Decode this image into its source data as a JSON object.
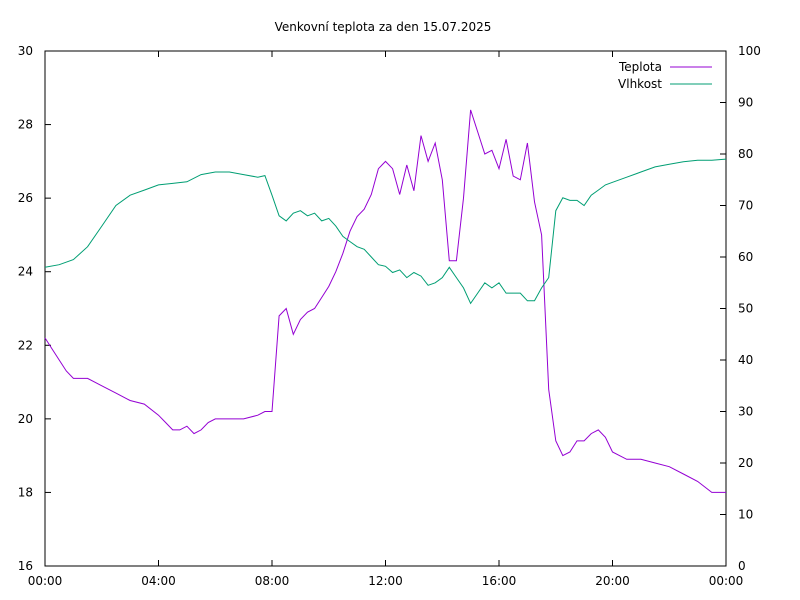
{
  "chart_data": {
    "type": "line",
    "title": "Venkovní teplota za den 15.07.2025",
    "xlabel": "",
    "ylabel": "",
    "y2label": "",
    "x_ticks": [
      "00:00",
      "04:00",
      "08:00",
      "12:00",
      "16:00",
      "20:00",
      "00:00"
    ],
    "x_range_hours": [
      0,
      24
    ],
    "y_left": {
      "range": [
        16,
        30
      ],
      "ticks": [
        16,
        18,
        20,
        22,
        24,
        26,
        28,
        30
      ]
    },
    "y_right": {
      "range": [
        0,
        100
      ],
      "ticks": [
        0,
        10,
        20,
        30,
        40,
        50,
        60,
        70,
        80,
        90,
        100
      ]
    },
    "grid": false,
    "legend_position": "top-right",
    "series": [
      {
        "name": "Teplota",
        "axis": "left",
        "color": "#9400d3",
        "x": [
          0,
          0.25,
          0.5,
          0.75,
          1,
          1.5,
          2,
          2.5,
          3,
          3.5,
          4,
          4.25,
          4.5,
          4.75,
          5,
          5.25,
          5.5,
          5.75,
          6,
          6.5,
          7,
          7.5,
          7.75,
          8,
          8.25,
          8.5,
          8.75,
          9,
          9.25,
          9.5,
          9.75,
          10,
          10.25,
          10.5,
          10.75,
          11,
          11.25,
          11.5,
          11.75,
          12,
          12.25,
          12.5,
          12.75,
          13,
          13.25,
          13.5,
          13.75,
          14,
          14.25,
          14.5,
          14.75,
          15,
          15.25,
          15.5,
          15.75,
          16,
          16.25,
          16.5,
          16.75,
          17,
          17.25,
          17.5,
          17.75,
          18,
          18.25,
          18.5,
          18.75,
          19,
          19.25,
          19.5,
          19.75,
          20,
          20.5,
          21,
          21.5,
          22,
          22.5,
          23,
          23.5,
          24
        ],
        "values": [
          22.2,
          21.9,
          21.6,
          21.3,
          21.1,
          21.1,
          20.9,
          20.7,
          20.5,
          20.4,
          20.1,
          19.9,
          19.7,
          19.7,
          19.8,
          19.6,
          19.7,
          19.9,
          20.0,
          20.0,
          20.0,
          20.1,
          20.2,
          20.2,
          22.8,
          23.0,
          22.3,
          22.7,
          22.9,
          23.0,
          23.3,
          23.6,
          24.0,
          24.5,
          25.1,
          25.5,
          25.7,
          26.1,
          26.8,
          27.0,
          26.8,
          26.1,
          26.9,
          26.2,
          27.7,
          27.0,
          27.5,
          26.5,
          24.3,
          24.3,
          26.0,
          28.4,
          27.8,
          27.2,
          27.3,
          26.8,
          27.6,
          26.6,
          26.5,
          27.5,
          25.9,
          25.0,
          20.8,
          19.4,
          19.0,
          19.1,
          19.4,
          19.4,
          19.6,
          19.7,
          19.5,
          19.1,
          18.9,
          18.9,
          18.8,
          18.7,
          18.5,
          18.3,
          18.0,
          18.0
        ]
      },
      {
        "name": "Vlhkost",
        "axis": "right",
        "color": "#009e73",
        "x": [
          0,
          0.5,
          1,
          1.5,
          2,
          2.5,
          3,
          3.5,
          4,
          4.5,
          5,
          5.5,
          6,
          6.5,
          7,
          7.5,
          7.75,
          8,
          8.25,
          8.5,
          8.75,
          9,
          9.25,
          9.5,
          9.75,
          10,
          10.25,
          10.5,
          10.75,
          11,
          11.25,
          11.5,
          11.75,
          12,
          12.25,
          12.5,
          12.75,
          13,
          13.25,
          13.5,
          13.75,
          14,
          14.25,
          14.5,
          14.75,
          15,
          15.25,
          15.5,
          15.75,
          16,
          16.25,
          16.5,
          16.75,
          17,
          17.25,
          17.5,
          17.75,
          18,
          18.25,
          18.5,
          18.75,
          19,
          19.25,
          19.5,
          19.75,
          20,
          20.5,
          21,
          21.5,
          22,
          22.5,
          23,
          23.5,
          24
        ],
        "values": [
          58,
          58.5,
          59.5,
          62,
          66,
          70,
          72,
          73,
          74,
          74.3,
          74.6,
          76,
          76.5,
          76.5,
          76,
          75.5,
          75.8,
          72,
          68,
          67,
          68.5,
          69,
          68,
          68.5,
          67,
          67.5,
          66,
          64,
          63,
          62,
          61.5,
          60,
          58.5,
          58.2,
          57,
          57.5,
          56,
          57,
          56.3,
          54.5,
          55,
          56,
          58,
          56,
          54,
          51,
          53,
          55,
          54,
          55,
          53,
          53,
          53,
          51.5,
          51.5,
          54,
          56,
          69,
          71.5,
          71,
          71,
          70,
          72,
          73,
          74,
          74.5,
          75.5,
          76.5,
          77.5,
          78,
          78.5,
          78.8,
          78.8,
          79
        ]
      }
    ]
  }
}
